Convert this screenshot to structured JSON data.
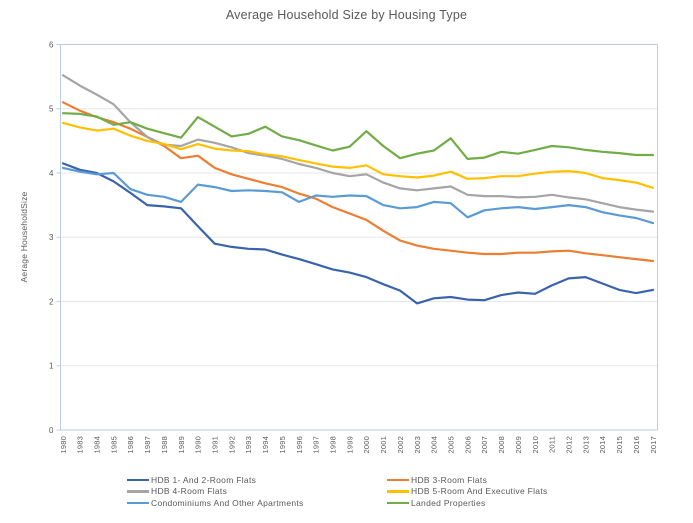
{
  "style": {
    "background": "#ffffff",
    "text_color": "#595959",
    "axis_border_color": "#b9cde4",
    "gridline_color": "#e7e7e7"
  },
  "chart_data": {
    "type": "line",
    "title": "Average Household Size by Housing Type",
    "xlabel": "",
    "ylabel": "Aerage HouseholdSize",
    "ylim": [
      0,
      6
    ],
    "y_ticks": [
      0,
      1,
      2,
      3,
      4,
      5,
      6
    ],
    "grid": "horizontal",
    "legend_position": "bottom",
    "x": [
      1980,
      1983,
      1984,
      1985,
      1986,
      1987,
      1988,
      1989,
      1990,
      1991,
      1992,
      1993,
      1994,
      1995,
      1996,
      1997,
      1998,
      1999,
      2000,
      2001,
      2002,
      2003,
      2004,
      2005,
      2006,
      2007,
      2008,
      2009,
      2010,
      2011,
      2012,
      2013,
      2014,
      2015,
      2016,
      2017
    ],
    "series": [
      {
        "name": "HDB 1- And 2-Room Flats",
        "color": "#3a63ad",
        "values": [
          4.15,
          4.05,
          4.0,
          3.87,
          3.69,
          3.5,
          3.48,
          3.45,
          3.17,
          2.9,
          2.85,
          2.82,
          2.81,
          2.73,
          2.66,
          2.58,
          2.5,
          2.45,
          2.38,
          2.27,
          2.17,
          1.97,
          2.05,
          2.07,
          2.03,
          2.02,
          2.1,
          2.14,
          2.12,
          2.25,
          2.36,
          2.38,
          2.28,
          2.18,
          2.13,
          2.18
        ]
      },
      {
        "name": "HDB 3-Room Flats",
        "color": "#ed7d31",
        "values": [
          5.1,
          4.97,
          4.87,
          4.79,
          4.69,
          4.56,
          4.42,
          4.23,
          4.27,
          4.08,
          3.98,
          3.91,
          3.84,
          3.78,
          3.68,
          3.6,
          3.47,
          3.37,
          3.27,
          3.1,
          2.95,
          2.87,
          2.82,
          2.79,
          2.76,
          2.74,
          2.74,
          2.76,
          2.76,
          2.78,
          2.79,
          2.75,
          2.72,
          2.69,
          2.66,
          2.63
        ]
      },
      {
        "name": "HDB 4-Room Flats",
        "color": "#a5a5a5",
        "values": [
          5.52,
          5.36,
          5.22,
          5.07,
          4.79,
          4.56,
          4.44,
          4.42,
          4.52,
          4.47,
          4.4,
          4.31,
          4.27,
          4.22,
          4.14,
          4.08,
          4.0,
          3.95,
          3.98,
          3.85,
          3.76,
          3.73,
          3.76,
          3.79,
          3.66,
          3.64,
          3.64,
          3.62,
          3.63,
          3.66,
          3.62,
          3.59,
          3.53,
          3.47,
          3.43,
          3.4
        ]
      },
      {
        "name": "HDB 5-Room And Executive Flats",
        "color": "#ffc000",
        "values": [
          4.78,
          4.71,
          4.66,
          4.69,
          4.58,
          4.5,
          4.45,
          4.37,
          4.45,
          4.38,
          4.35,
          4.34,
          4.29,
          4.26,
          4.2,
          4.15,
          4.1,
          4.08,
          4.12,
          3.98,
          3.95,
          3.93,
          3.96,
          4.02,
          3.91,
          3.92,
          3.95,
          3.95,
          3.99,
          4.02,
          4.03,
          4.0,
          3.92,
          3.89,
          3.85,
          3.77
        ]
      },
      {
        "name": "Condominiums And Other Apartments",
        "color": "#5b9bd5",
        "values": [
          4.08,
          4.02,
          3.98,
          4.0,
          3.75,
          3.66,
          3.63,
          3.55,
          3.82,
          3.78,
          3.72,
          3.73,
          3.72,
          3.7,
          3.55,
          3.65,
          3.63,
          3.65,
          3.64,
          3.5,
          3.45,
          3.47,
          3.55,
          3.53,
          3.31,
          3.42,
          3.45,
          3.47,
          3.44,
          3.47,
          3.5,
          3.47,
          3.39,
          3.34,
          3.3,
          3.22
        ]
      },
      {
        "name": "Landed Properties",
        "color": "#70ad47",
        "values": [
          4.93,
          4.92,
          4.88,
          4.75,
          4.79,
          4.69,
          4.62,
          4.55,
          4.87,
          4.72,
          4.57,
          4.61,
          4.72,
          4.57,
          4.51,
          4.43,
          4.35,
          4.41,
          4.65,
          4.42,
          4.23,
          4.3,
          4.35,
          4.54,
          4.22,
          4.24,
          4.33,
          4.3,
          4.36,
          4.42,
          4.4,
          4.36,
          4.33,
          4.31,
          4.28,
          4.28
        ]
      }
    ]
  }
}
